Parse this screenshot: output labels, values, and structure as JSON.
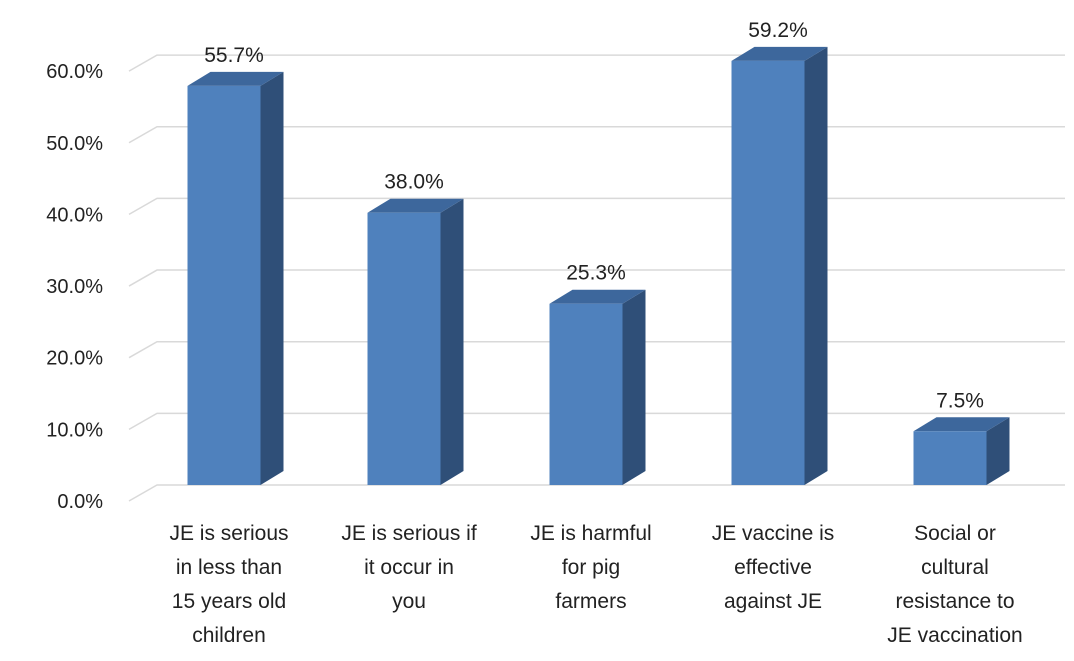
{
  "chart_data": {
    "type": "bar",
    "style": "3d-column",
    "categories": [
      [
        "JE is serious",
        "in less than",
        "15 years old",
        "children"
      ],
      [
        "JE is serious if",
        "it occur in",
        "you"
      ],
      [
        "JE is harmful",
        "for pig",
        "farmers"
      ],
      [
        "JE vaccine is",
        "effective",
        "against JE"
      ],
      [
        "Social or",
        "cultural",
        "resistance to",
        "JE vaccination"
      ]
    ],
    "values": [
      55.7,
      38.0,
      25.3,
      59.2,
      7.5
    ],
    "value_labels": [
      "55.7%",
      "38.0%",
      "25.3%",
      "59.2%",
      "7.5%"
    ],
    "y_ticks": [
      "0.0%",
      "10.0%",
      "20.0%",
      "30.0%",
      "40.0%",
      "50.0%",
      "60.0%"
    ],
    "ylim": [
      0,
      60
    ],
    "grid": true,
    "title": "",
    "xlabel": "",
    "ylabel": "",
    "colors": {
      "front": "#4f81bd",
      "side": "#2f4f78",
      "top": "#3d679c",
      "grid": "#d9d9d9"
    }
  }
}
